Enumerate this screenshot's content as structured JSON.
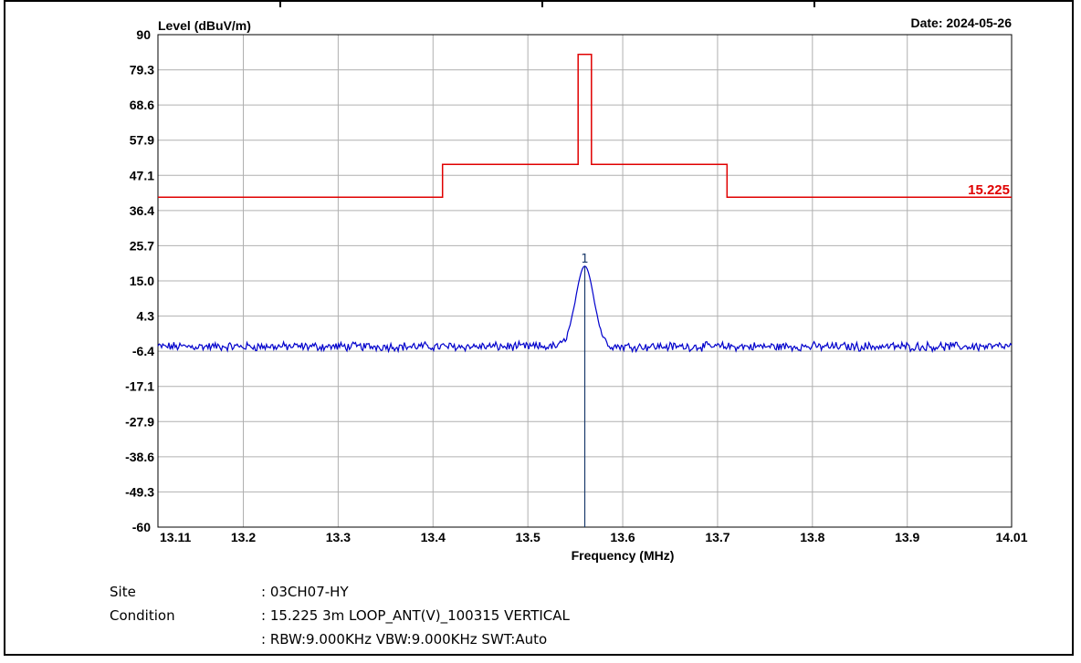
{
  "chart_data": {
    "type": "line",
    "ylabel": "Level (dBuV/m)",
    "xlabel": "Frequency (MHz)",
    "date": "Date: 2024-05-26",
    "limit_label": "15.225",
    "marker_label": "1",
    "ylim": [
      -60,
      90
    ],
    "xlim": [
      13.11,
      14.01
    ],
    "y_ticks": [
      "90",
      "79.3",
      "68.6",
      "57.9",
      "47.1",
      "36.4",
      "25.7",
      "15.0",
      "4.3",
      "-6.4",
      "-17.1",
      "-27.9",
      "-38.6",
      "-49.3",
      "-60"
    ],
    "x_ticks": [
      "13.11",
      "13.2",
      "13.3",
      "13.4",
      "13.5",
      "13.6",
      "13.7",
      "13.8",
      "13.9",
      "14.01"
    ],
    "x_tick_values": [
      13.11,
      13.2,
      13.3,
      13.4,
      13.5,
      13.6,
      13.7,
      13.8,
      13.9,
      14.01
    ],
    "grid": true,
    "limit_line": {
      "name": "15.225",
      "color": "#e00000",
      "steps": [
        [
          13.11,
          40.5
        ],
        [
          13.41,
          40.5
        ],
        [
          13.41,
          50.5
        ],
        [
          13.553,
          50.5
        ],
        [
          13.553,
          84.0
        ],
        [
          13.567,
          84.0
        ],
        [
          13.567,
          50.5
        ],
        [
          13.71,
          50.5
        ],
        [
          13.71,
          40.5
        ],
        [
          14.01,
          40.5
        ]
      ]
    },
    "series": [
      {
        "color": "#0000cc",
        "noise_floor": -5.0,
        "peak": {
          "x": 13.56,
          "y": 19.5
        }
      }
    ],
    "marker": {
      "x": 13.56,
      "y": 19.5,
      "label": "1"
    }
  },
  "info": {
    "site_label": "Site",
    "site_value": ": 03CH07-HY",
    "condition_label": "Condition",
    "condition_value": ": 15.225 3m LOOP_ANT(V)_100315 VERTICAL",
    "settings_value": ": RBW:9.000KHz VBW:9.000KHz SWT:Auto"
  }
}
